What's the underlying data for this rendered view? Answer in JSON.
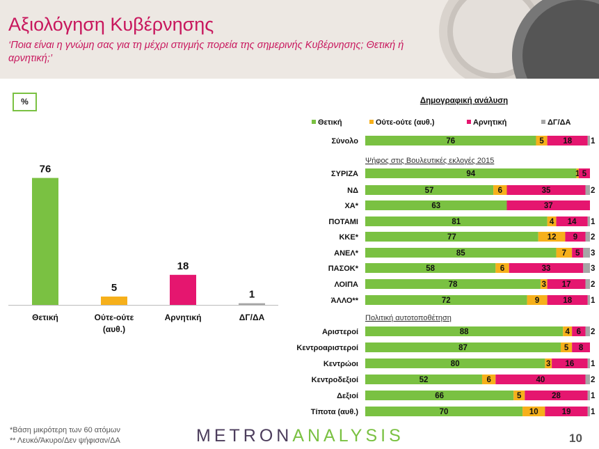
{
  "header": {
    "title": "Αξιολόγηση Κυβέρνησης",
    "subtitle": "‘Ποια είναι η γνώμη σας για τη μέχρι στιγμής πορεία της σημερινής Κυβέρνησης; Θετική ή αρνητική;’"
  },
  "pct_label": "%",
  "colors": {
    "positive": "#7ac142",
    "neutral": "#f6b01b",
    "negative": "#e5166f",
    "dk": "#a6a6a6"
  },
  "footer": {
    "note1": "*Βάση μικρότερη των 60 ατόμων",
    "note2": "** Λευκό/Άκυρο/Δεν ψήφισαν/ΔΑ",
    "logo_a": "METRON",
    "logo_b": "ANALYSIS",
    "page": "10"
  },
  "chart_data": [
    {
      "type": "bar",
      "categories": [
        "Θετική",
        "Ούτε-ούτε (αυθ.)",
        "Αρνητική",
        "ΔΓ/ΔΑ"
      ],
      "values": [
        76,
        5,
        18,
        1
      ],
      "ylim": [
        0,
        100
      ]
    },
    {
      "type": "bar",
      "orientation": "horizontal",
      "stacked": true,
      "title": "Δημογραφική ανάλυση",
      "legend": [
        "Θετική",
        "Ούτε-ούτε (αυθ.)",
        "Αρνητική",
        "ΔΓ/ΔΑ"
      ],
      "legend_position": "top",
      "groups": [
        {
          "label": "",
          "rows": [
            {
              "label": "Σύνολο",
              "values": [
                76,
                5,
                18,
                1
              ]
            }
          ]
        },
        {
          "label": "Ψήφος στις Βουλευτικές εκλογές 2015",
          "rows": [
            {
              "label": "ΣΥΡΙΖΑ",
              "values": [
                94,
                1,
                5,
                0
              ]
            },
            {
              "label": "ΝΔ",
              "values": [
                57,
                6,
                35,
                2
              ]
            },
            {
              "label": "ΧΑ*",
              "values": [
                63,
                0,
                37,
                0
              ]
            },
            {
              "label": "ΠΟΤΑΜΙ",
              "values": [
                81,
                4,
                14,
                1
              ]
            },
            {
              "label": "ΚΚΕ*",
              "values": [
                77,
                12,
                9,
                2
              ]
            },
            {
              "label": "ΑΝΕΛ*",
              "values": [
                85,
                7,
                5,
                3
              ]
            },
            {
              "label": "ΠΑΣΟΚ*",
              "values": [
                58,
                6,
                33,
                3
              ]
            },
            {
              "label": "ΛΟΙΠΑ",
              "values": [
                78,
                3,
                17,
                2
              ]
            },
            {
              "label": "ΆΛΛΟ**",
              "values": [
                72,
                9,
                18,
                1
              ]
            }
          ]
        },
        {
          "label": "Πολιτική αυτοτοποθέτηση",
          "rows": [
            {
              "label": "Αριστεροί",
              "values": [
                88,
                4,
                6,
                2
              ]
            },
            {
              "label": "Κεντροαριστεροί",
              "values": [
                87,
                5,
                8,
                0
              ]
            },
            {
              "label": "Κεντρώοι",
              "values": [
                80,
                3,
                16,
                1
              ]
            },
            {
              "label": "Κεντροδεξιοί",
              "values": [
                52,
                6,
                40,
                2
              ]
            },
            {
              "label": "Δεξιοί",
              "values": [
                66,
                5,
                28,
                1
              ]
            },
            {
              "label": "Τίποτα (αυθ.)",
              "values": [
                70,
                10,
                19,
                1
              ]
            }
          ]
        }
      ]
    }
  ]
}
